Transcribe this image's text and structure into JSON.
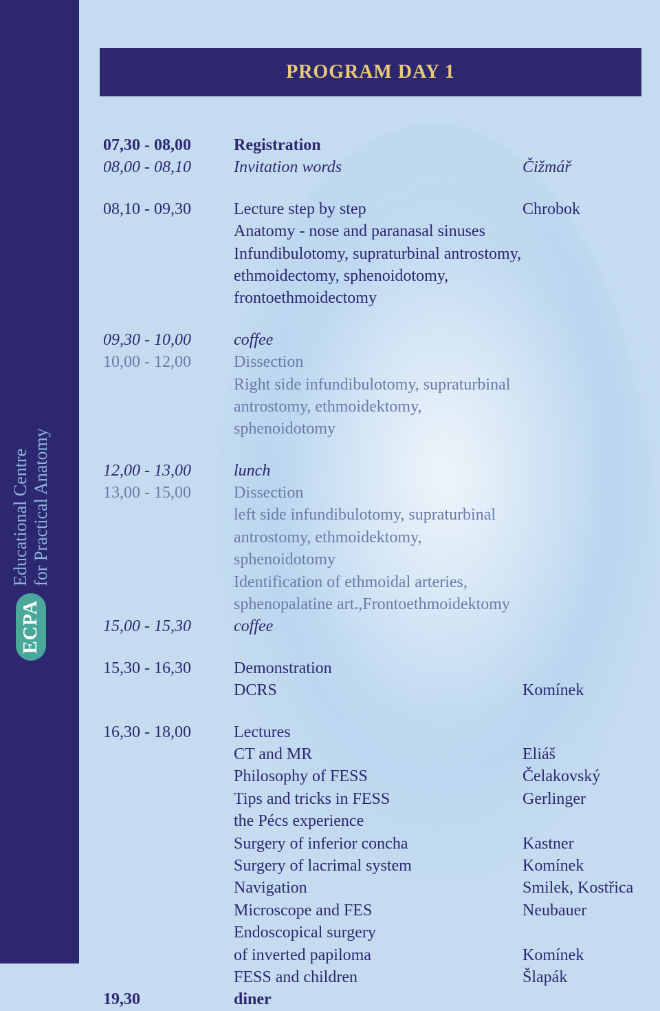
{
  "sidebar": {
    "logo_text": "ECPA",
    "line1": "Educational Centre",
    "line2": "for Practical Anatomy"
  },
  "title": "PROGRAM DAY 1",
  "colors": {
    "sidebar_bg": "#2c2770",
    "title_bg": "#2c2770",
    "title_text": "#e8c978",
    "body_text": "#2c2770",
    "muted_text": "#6b7ba8",
    "page_bg": "#c5dcf0",
    "logo_bg": "#4aa89a"
  },
  "schedule": [
    {
      "time": "07,30 - 08,00",
      "desc": "Registration",
      "speaker": "",
      "time_style": "bold",
      "desc_style": "bold"
    },
    {
      "time": "08,00 - 08,10",
      "desc": "Invitation words",
      "speaker": "Čižmář",
      "time_style": "italic",
      "desc_style": "italic"
    },
    {
      "gap": "block"
    },
    {
      "time": "08,10 - 09,30",
      "desc": "Lecture step by step",
      "speaker": "Chrobok"
    },
    {
      "time": "",
      "desc": "Anatomy - nose and paranasal sinuses",
      "speaker": ""
    },
    {
      "time": "",
      "desc": "Infundibulotomy, supraturbinal antrostomy,",
      "speaker": ""
    },
    {
      "time": "",
      "desc": "ethmoidectomy, sphenoidotomy,",
      "speaker": ""
    },
    {
      "time": "",
      "desc": "frontoethmoidectomy",
      "speaker": ""
    },
    {
      "gap": "block"
    },
    {
      "time": "09,30 - 10,00",
      "desc": "coffee",
      "speaker": "",
      "time_style": "italic",
      "desc_style": "italic"
    },
    {
      "time": "10,00 - 12,00",
      "desc": "Dissection",
      "speaker": "",
      "time_style": "muted",
      "desc_style": "muted"
    },
    {
      "time": "",
      "desc": "Right side infundibulotomy, supraturbinal",
      "speaker": "",
      "desc_style": "muted"
    },
    {
      "time": "",
      "desc": "antrostomy, ethmoidektomy, sphenoidotomy",
      "speaker": "",
      "desc_style": "muted"
    },
    {
      "gap": "block"
    },
    {
      "time": "12,00 - 13,00",
      "desc": "lunch",
      "speaker": "",
      "time_style": "italic",
      "desc_style": "italic"
    },
    {
      "time": "13,00 - 15,00",
      "desc": "Dissection",
      "speaker": "",
      "time_style": "muted",
      "desc_style": "muted"
    },
    {
      "time": "",
      "desc": "left side infundibulotomy, supraturbinal",
      "speaker": "",
      "desc_style": "muted"
    },
    {
      "time": "",
      "desc": "antrostomy, ethmoidektomy, sphenoidotomy",
      "speaker": "",
      "desc_style": "muted"
    },
    {
      "time": "",
      "desc": "Identification of ethmoidal arteries,",
      "speaker": "",
      "desc_style": "muted"
    },
    {
      "time": "",
      "desc": "sphenopalatine art.,Frontoethmoidektomy",
      "speaker": "",
      "desc_style": "muted"
    },
    {
      "time": "15,00 - 15,30",
      "desc": "coffee",
      "speaker": "",
      "time_style": "italic",
      "desc_style": "italic"
    },
    {
      "gap": "block"
    },
    {
      "time": "15,30 - 16,30",
      "desc": "Demonstration",
      "speaker": ""
    },
    {
      "time": "",
      "desc": "DCRS",
      "speaker": "Komínek"
    },
    {
      "gap": "block"
    },
    {
      "time": "16,30 - 18,00",
      "desc": "Lectures",
      "speaker": ""
    },
    {
      "time": "",
      "desc": "CT and MR",
      "speaker": "Eliáš"
    },
    {
      "time": "",
      "desc": "Philosophy of FESS",
      "speaker": "Čelakovský"
    },
    {
      "time": "",
      "desc": "Tips and tricks in FESS",
      "speaker": "Gerlinger"
    },
    {
      "time": "",
      "desc": " the Pécs experience",
      "speaker": ""
    },
    {
      "time": "",
      "desc": "Surgery of inferior concha",
      "speaker": "Kastner"
    },
    {
      "time": "",
      "desc": "Surgery of lacrimal system",
      "speaker": "Komínek"
    },
    {
      "time": "",
      "desc": "Navigation",
      "speaker": "Smilek, Kostřica"
    },
    {
      "time": "",
      "desc": "Microscope and FES",
      "speaker": "Neubauer"
    },
    {
      "time": "",
      "desc": "Endoscopical surgery",
      "speaker": ""
    },
    {
      "time": "",
      "desc": "of inverted papiloma",
      "speaker": "Komínek"
    },
    {
      "time": "",
      "desc": "FESS and children",
      "speaker": "Šlapák"
    },
    {
      "time": "19,30",
      "desc": "diner",
      "speaker": "",
      "time_style": "bold",
      "desc_style": "bold"
    }
  ]
}
